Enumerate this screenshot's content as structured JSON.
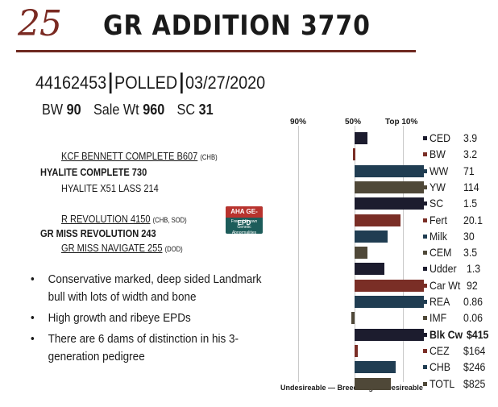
{
  "lot": {
    "number": "25",
    "name": "GR ADDITION 3770"
  },
  "id_line": {
    "reg": "44162453",
    "horn": "POLLED",
    "date": "03/27/2020"
  },
  "traits": [
    {
      "label": "BW",
      "value": "90"
    },
    {
      "label": "Sale Wt",
      "value": "960"
    },
    {
      "label": "SC",
      "value": "31"
    }
  ],
  "pedigree": {
    "sire_sire": {
      "name": "KCF BENNETT COMPLETE B607",
      "tag": "(CHB)"
    },
    "sire": {
      "name": "HYALITE COMPLETE 730"
    },
    "sire_dam": {
      "name": "HYALITE X51 LASS 214"
    },
    "dam_sire": {
      "name": "R REVOLUTION 4150",
      "tag": "(CHB, SOD)"
    },
    "dam": {
      "name": "GR MISS REVOLUTION 243"
    },
    "dam_dam": {
      "name": "GR MISS NAVIGATE 255",
      "tag": "(DOD)"
    }
  },
  "badge": {
    "top": "AHA GE-EPD",
    "bottom": "Free of Known Genetic Abnormalities"
  },
  "bullets": [
    "Conservative marked, deep sided Landmark bull with lots of width and bone",
    "High growth and ribeye EPDs",
    "There are 6 dams of distinction in his 3-generation pedigree"
  ],
  "chart_data": {
    "type": "bar",
    "orientation": "horizontal",
    "percentile_headers": [
      "90%",
      "50%",
      "Top 10%"
    ],
    "footer": "Undesireable — Breed Avg. — Desireable",
    "categories": [
      "CED",
      "BW",
      "WW",
      "YW",
      "SC",
      "Fert",
      "Milk",
      "CEM",
      "Udder",
      "Car Wt",
      "REA",
      "IMF",
      "Blk Cw",
      "CEZ",
      "CHB",
      "TOTL"
    ],
    "display_values": [
      "3.9",
      "3.2",
      "71",
      "114",
      "1.5",
      "20.1",
      "30",
      "3.5",
      "1.3",
      "92",
      "0.86",
      "0.06",
      "$415",
      "$164",
      "$246",
      "$825"
    ],
    "bar_scores": [
      0.4,
      -0.05,
      2.1,
      2.1,
      2.1,
      1.4,
      1.0,
      0.4,
      0.9,
      2.1,
      2.1,
      -0.1,
      2.1,
      0.1,
      1.25,
      1.1
    ],
    "bar_colors": [
      "#1c1c2e",
      "#7a2e26",
      "#203d52",
      "#4f4838",
      "#1c1c2e",
      "#7a2e26",
      "#203d52",
      "#4f4838",
      "#1c1c2e",
      "#7a2e26",
      "#203d52",
      "#4f4838",
      "#1c1c2e",
      "#7a2e26",
      "#203d52",
      "#4f4838"
    ]
  }
}
